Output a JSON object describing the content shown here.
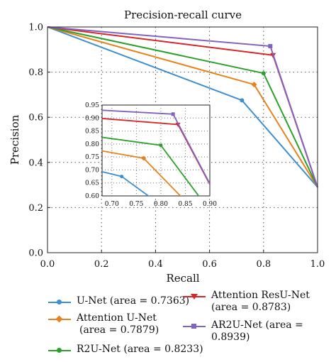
{
  "chart_data": {
    "type": "line",
    "title": "Precision-recall curve",
    "xlabel": "Recall",
    "ylabel": "Precision",
    "xlim": [
      0.0,
      1.0
    ],
    "ylim": [
      0.0,
      1.0
    ],
    "xticks": [
      "0.0",
      "0.2",
      "0.4",
      "0.6",
      "0.8",
      "1.0"
    ],
    "yticks": [
      "0.0",
      "0.2",
      "0.4",
      "0.6",
      "0.8",
      "1.0"
    ],
    "grid": "dotted",
    "legend_position": "bottom",
    "series": [
      {
        "name": "U-Net",
        "area_label": "(area = 0.7363)",
        "color": "#3d8fd1",
        "marker": "circle",
        "x": [
          0.0,
          0.72,
          1.0
        ],
        "y": [
          1.0,
          0.675,
          0.29
        ]
      },
      {
        "name": "Attention U-Net",
        "area_label": "(area = 0.7879)",
        "color": "#e8821e",
        "marker": "diamond",
        "x": [
          0.0,
          0.765,
          1.0
        ],
        "y": [
          1.0,
          0.745,
          0.29
        ]
      },
      {
        "name": "R2U-Net",
        "area_label": "(area = 0.8233)",
        "color": "#2ca02c",
        "marker": "circle",
        "x": [
          0.0,
          0.8,
          1.0
        ],
        "y": [
          1.0,
          0.795,
          0.29
        ]
      },
      {
        "name": "Attention ResU-Net",
        "area_label": "(area = 0.8783)",
        "color": "#d62728",
        "marker": "triangle",
        "x": [
          0.0,
          0.835,
          1.0
        ],
        "y": [
          1.0,
          0.875,
          0.29
        ]
      },
      {
        "name": "AR2U-Net",
        "area_label": "(area = 0.8939)",
        "color": "#8064c0",
        "marker": "square",
        "x": [
          0.0,
          0.825,
          1.0
        ],
        "y": [
          1.0,
          0.915,
          0.29
        ]
      }
    ],
    "inset": {
      "xlim": [
        0.68,
        0.9
      ],
      "ylim": [
        0.6,
        0.95
      ],
      "xticks": [
        "0.70",
        "0.75",
        "0.80",
        "0.85",
        "0.90"
      ],
      "yticks": [
        "0.60",
        "0.65",
        "0.70",
        "0.75",
        "0.80",
        "0.85",
        "0.90",
        "0.95"
      ]
    }
  },
  "legend": [
    {
      "name": "U-Net",
      "area_label": "(area = 0.7363)",
      "color": "#3d8fd1"
    },
    {
      "name": "Attention U-Net",
      "area_label": "(area = 0.7879)",
      "color": "#e8821e"
    },
    {
      "name": "R2U-Net",
      "area_label": "(area = 0.8233)",
      "color": "#2ca02c"
    },
    {
      "name": "Attention ResU-Net",
      "area_label": "(area = 0.8783)",
      "color": "#d62728"
    },
    {
      "name": "AR2U-Net",
      "area_label": "(area = 0.8939)",
      "color": "#8064c0"
    }
  ]
}
